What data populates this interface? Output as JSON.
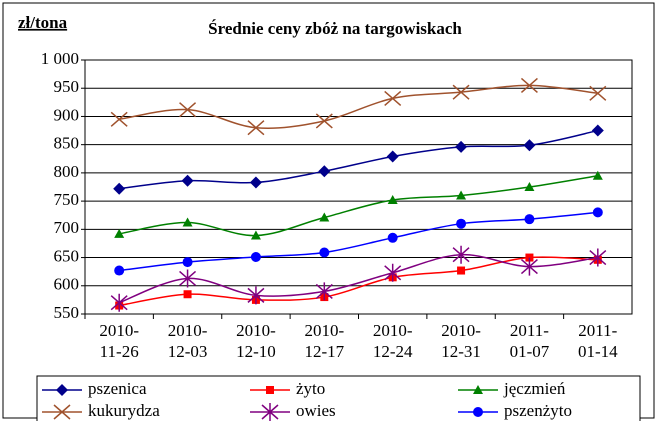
{
  "chart_data": {
    "type": "line",
    "title": "Średnie ceny zbóż na targowiskach",
    "y_label": "zł/tona",
    "categories": [
      "2010-11-26",
      "2010-12-03",
      "2010-12-10",
      "2010-12-17",
      "2010-12-24",
      "2010-12-31",
      "2011-01-07",
      "2011-01-14"
    ],
    "series": [
      {
        "name": "pszenica",
        "color": "#00008b",
        "marker": "diamond",
        "values": [
          772,
          786,
          783,
          803,
          829,
          846,
          849,
          875
        ]
      },
      {
        "name": "żyto",
        "color": "#ff0000",
        "marker": "square",
        "values": [
          565,
          585,
          575,
          580,
          615,
          627,
          650,
          646
        ]
      },
      {
        "name": "jęczmień",
        "color": "#008000",
        "marker": "triangle",
        "values": [
          692,
          712,
          689,
          721,
          752,
          760,
          775,
          795
        ]
      },
      {
        "name": "kukurydza",
        "color": "#a0522d",
        "marker": "x",
        "values": [
          895,
          912,
          880,
          892,
          932,
          943,
          955,
          941
        ]
      },
      {
        "name": "owies",
        "color": "#800080",
        "marker": "star",
        "values": [
          570,
          613,
          583,
          590,
          623,
          655,
          634,
          650
        ]
      },
      {
        "name": "pszenżyto",
        "color": "#0000ff",
        "marker": "circle",
        "values": [
          627,
          642,
          651,
          659,
          685,
          710,
          718,
          730
        ]
      }
    ],
    "ylim": [
      550,
      1000
    ],
    "yticks": [
      550,
      600,
      650,
      700,
      750,
      800,
      850,
      900,
      950,
      {
        "value": 1000,
        "label": "1 000"
      }
    ],
    "grid": true,
    "legend": "bottom"
  }
}
